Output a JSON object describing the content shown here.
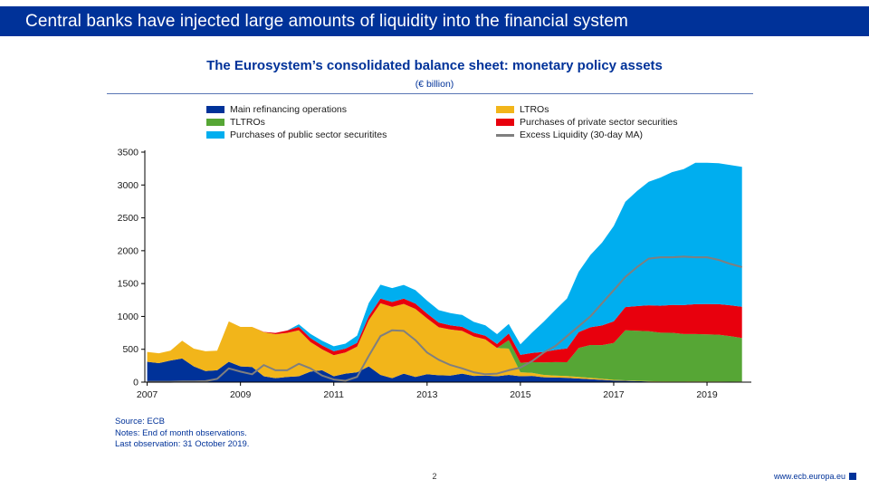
{
  "banner": {
    "title": "Central banks have injected large amounts of liquidity into the financial system"
  },
  "source": {
    "lines": [
      "Source: ECB",
      "Notes: End of month observations.",
      "Last observation: 31 October 2019."
    ]
  },
  "footer": {
    "page_number": "2",
    "website": "www.ecb.europa.eu"
  },
  "chart_data": {
    "type": "area",
    "stacked": true,
    "title": "The Eurosystem’s consolidated balance sheet: monetary policy assets",
    "subtitle": "(€ billion)",
    "grid": false,
    "legend_position": "top",
    "legend_columns": [
      [
        0,
        2,
        4
      ],
      [
        1,
        3,
        5
      ]
    ],
    "xlabel": "",
    "ylabel": "",
    "xmin": 2006.95,
    "xmax": 2019.95,
    "ylim": [
      0,
      3500
    ],
    "ytick_step": 500,
    "yticks": [
      0,
      500,
      1000,
      1500,
      2000,
      2500,
      3000,
      3500
    ],
    "xticks": [
      2007,
      2009,
      2011,
      2013,
      2015,
      2017,
      2019
    ],
    "x": [
      2007,
      2007.25,
      2007.5,
      2007.75,
      2008,
      2008.25,
      2008.5,
      2008.75,
      2009,
      2009.25,
      2009.5,
      2009.75,
      2010,
      2010.25,
      2010.5,
      2010.75,
      2011,
      2011.25,
      2011.5,
      2011.75,
      2012,
      2012.25,
      2012.5,
      2012.75,
      2013,
      2013.25,
      2013.5,
      2013.75,
      2014,
      2014.25,
      2014.5,
      2014.75,
      2015,
      2015.25,
      2015.5,
      2015.75,
      2016,
      2016.25,
      2016.5,
      2016.75,
      2017,
      2017.25,
      2017.5,
      2017.75,
      2018,
      2018.25,
      2018.5,
      2018.75,
      2019,
      2019.25,
      2019.5,
      2019.75
    ],
    "series": [
      {
        "name": "Main refinancing operations",
        "type": "area",
        "color": "#003299",
        "values": [
          310,
          290,
          330,
          360,
          240,
          170,
          180,
          310,
          240,
          230,
          90,
          60,
          80,
          90,
          160,
          180,
          90,
          130,
          150,
          240,
          110,
          60,
          130,
          80,
          120,
          105,
          100,
          130,
          95,
          100,
          90,
          110,
          90,
          95,
          75,
          70,
          65,
          55,
          45,
          35,
          25,
          20,
          15,
          10,
          8,
          6,
          6,
          8,
          6,
          6,
          5,
          8
        ]
      },
      {
        "name": "LTROs",
        "type": "area",
        "color": "#F2B51A",
        "values": [
          150,
          150,
          150,
          270,
          270,
          300,
          300,
          615,
          600,
          610,
          670,
          670,
          670,
          700,
          450,
          320,
          320,
          320,
          390,
          700,
          1090,
          1085,
          1060,
          1035,
          850,
          730,
          700,
          650,
          600,
          550,
          430,
          400,
          60,
          45,
          35,
          30,
          28,
          25,
          20,
          18,
          10,
          8,
          6,
          5,
          5,
          5,
          4,
          4,
          4,
          4,
          3,
          3
        ]
      },
      {
        "name": "TLTROs",
        "type": "area",
        "color": "#56A635",
        "values": [
          0,
          0,
          0,
          0,
          0,
          0,
          0,
          0,
          0,
          0,
          0,
          0,
          0,
          0,
          0,
          0,
          0,
          0,
          0,
          0,
          0,
          0,
          0,
          0,
          0,
          0,
          0,
          0,
          0,
          0,
          0,
          130,
          145,
          165,
          190,
          205,
          210,
          440,
          500,
          510,
          560,
          760,
          762,
          760,
          740,
          740,
          722,
          720,
          718,
          712,
          692,
          660
        ]
      },
      {
        "name": "Purchases of private sector securities",
        "type": "area",
        "color": "#E8000D",
        "values": [
          0,
          0,
          0,
          0,
          0,
          0,
          0,
          0,
          0,
          0,
          5,
          20,
          35,
          50,
          60,
          60,
          60,
          60,
          58,
          65,
          70,
          75,
          80,
          80,
          75,
          70,
          65,
          62,
          58,
          55,
          60,
          100,
          120,
          140,
          160,
          185,
          210,
          240,
          270,
          300,
          330,
          355,
          375,
          395,
          410,
          425,
          440,
          455,
          460,
          465,
          470,
          475
        ]
      },
      {
        "name": "Purchases of public sector securitites",
        "type": "area",
        "color": "#00AEEF",
        "values": [
          0,
          0,
          0,
          0,
          0,
          0,
          0,
          0,
          0,
          0,
          0,
          0,
          0,
          40,
          65,
          70,
          75,
          75,
          110,
          200,
          212,
          212,
          210,
          205,
          195,
          190,
          185,
          180,
          165,
          160,
          150,
          145,
          160,
          310,
          460,
          610,
          760,
          920,
          1100,
          1260,
          1450,
          1600,
          1750,
          1880,
          1950,
          2020,
          2070,
          2150,
          2150,
          2145,
          2135,
          2130
        ]
      },
      {
        "name": "Excess Liquidity (30-day MA)",
        "type": "line",
        "color": "#7F7F7F",
        "values": [
          5,
          5,
          5,
          10,
          10,
          15,
          50,
          210,
          160,
          120,
          260,
          180,
          180,
          280,
          210,
          100,
          40,
          20,
          80,
          400,
          700,
          790,
          780,
          640,
          450,
          340,
          260,
          210,
          150,
          120,
          130,
          180,
          220,
          320,
          450,
          550,
          700,
          850,
          1000,
          1200,
          1400,
          1600,
          1750,
          1880,
          1900,
          1900,
          1910,
          1900,
          1900,
          1860,
          1800,
          1750
        ]
      }
    ]
  }
}
